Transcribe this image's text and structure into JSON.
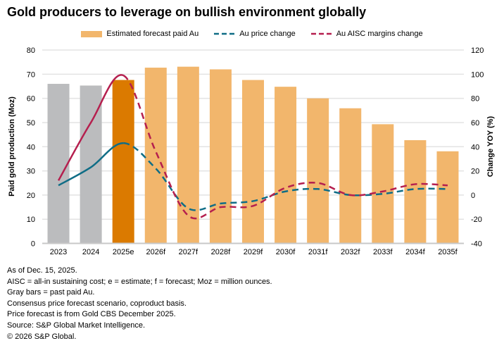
{
  "title": "Gold producers to leverage on bullish environment globally",
  "colors": {
    "past": "#bbbcbe",
    "estimate": "#db7a00",
    "forecast": "#f2b66c",
    "price": "#0f6d86",
    "aisc": "#b51f4e",
    "grid": "#e3e3e3"
  },
  "chart_data": {
    "type": "bar+line",
    "categories": [
      "2023",
      "2024",
      "2025e",
      "2026f",
      "2027f",
      "2028f",
      "2029f",
      "2030f",
      "2031f",
      "2032f",
      "2033f",
      "2034f",
      "2035f"
    ],
    "bars": {
      "name": "Estimated forecast paid Au",
      "values": [
        66,
        65.3,
        67.6,
        72.7,
        73.1,
        72,
        67.6,
        64.8,
        60,
        55.9,
        49.3,
        42.7,
        38.1
      ],
      "kind": [
        "past",
        "past",
        "estimate",
        "forecast",
        "forecast",
        "forecast",
        "forecast",
        "forecast",
        "forecast",
        "forecast",
        "forecast",
        "forecast",
        "forecast"
      ]
    },
    "series": [
      {
        "name": "Au price change",
        "axis": "right",
        "values": [
          8,
          23,
          43,
          22,
          -11,
          -7,
          -5,
          3,
          5,
          0,
          1,
          5,
          5
        ],
        "style": "dashed after 2025e"
      },
      {
        "name": "Au AISC margins change",
        "axis": "right",
        "values": [
          12,
          60,
          99,
          36,
          -17,
          -10,
          -9,
          6,
          10,
          0,
          3,
          9,
          8
        ],
        "style": "dashed after 2025e"
      }
    ],
    "ylabel": "Paid gold production (Moz)",
    "ylim": [
      0,
      80
    ],
    "yticks": [
      0,
      10,
      20,
      30,
      40,
      50,
      60,
      70,
      80
    ],
    "y2label": "Change YOY (%)",
    "y2lim": [
      -40,
      120
    ],
    "y2ticks": [
      -40,
      -20,
      0,
      20,
      40,
      60,
      80,
      100,
      120
    ],
    "grid": true,
    "legend": "top"
  },
  "notes": [
    "As of Dec. 15, 2025.",
    "AISC = all-in sustaining cost; e = estimate; f = forecast; Moz = million ounces.",
    "Gray bars = past paid Au.",
    "Consensus price forecast scenario, coproduct basis.",
    "Price forecast is from Gold CBS December 2025.",
    "Source: S&P Global Market Intelligence.",
    "© 2026 S&P Global."
  ]
}
